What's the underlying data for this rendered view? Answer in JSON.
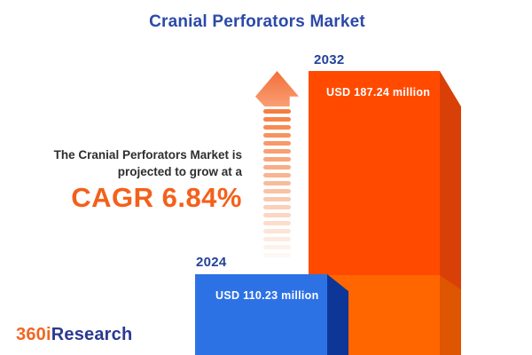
{
  "title": "Cranial Perforators Market",
  "description": {
    "line1": "The Cranial Perforators Market is",
    "line2": "projected to grow at a",
    "cagr": "CAGR 6.84%"
  },
  "bars": [
    {
      "year": "2024",
      "value": 110.23,
      "value_label": "USD 110.23 million",
      "front_color": "#2D72E5",
      "side_color": "#0D3697"
    },
    {
      "year": "2032",
      "value": 187.24,
      "value_label": "USD 187.24 million",
      "front_color_upper": "#FF4A00",
      "front_color_lower": "#FF6600",
      "side_color_upper": "#D84008",
      "side_color_lower": "#DE5502"
    }
  ],
  "growth_arrow": {
    "head_color_top": "#F36F38",
    "head_color_bottom": "#F99E74",
    "stripe_color": "#F5793B",
    "stripe_count": 19
  },
  "logo": {
    "prefix": "360i",
    "suffix": "Research",
    "prefix_color": "#F26522",
    "suffix_color": "#2B3990"
  },
  "colors": {
    "background": "#FFFFFF",
    "title_text": "#2B4AA8",
    "year_label_text": "#24419B",
    "description_text": "#2E2E2E",
    "cagr_text": "#F4601A",
    "value_label_text": "#FFFFFF"
  },
  "chart_data": {
    "type": "bar",
    "title": "Cranial Perforators Market",
    "categories": [
      "2024",
      "2032"
    ],
    "values": [
      110.23,
      187.24
    ],
    "value_labels": [
      "USD 110.23 million",
      "USD 187.24 million"
    ],
    "unit": "USD million",
    "cagr_percent": 6.84,
    "series_colors": [
      "#2D72E5",
      "#FF4A00"
    ],
    "legend_position": "none",
    "axes": "none",
    "style": "3d-infographic-bars"
  }
}
